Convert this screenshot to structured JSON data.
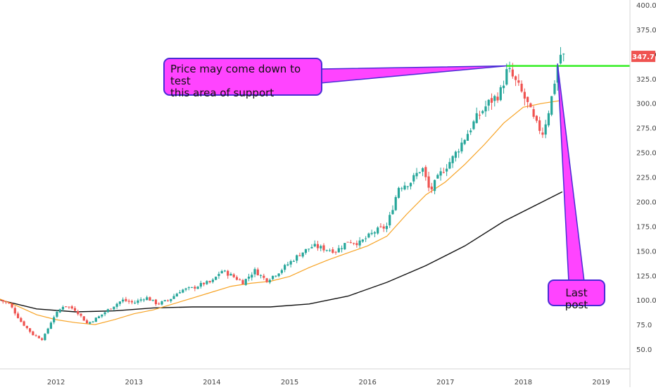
{
  "chart_data": {
    "type": "candlestick",
    "x_ticks": [
      "2012",
      "2013",
      "2014",
      "2015",
      "2016",
      "2017",
      "2018",
      "2019"
    ],
    "y_ticks": [
      "50.0",
      "75.0",
      "100.0",
      "125.0",
      "150.0",
      "175.0",
      "200.0",
      "225.0",
      "250.0",
      "275.0",
      "300.0",
      "325.0",
      "350.0",
      "375.0",
      "400.0"
    ],
    "ylim": [
      30,
      405
    ],
    "xlim": [
      2011.28,
      2019.37
    ],
    "grid": false,
    "colors": {
      "up": "#26a69a",
      "down": "#ef5350",
      "ma_fast": "#f7a325",
      "ma_slow": "#111111",
      "support_line": "#33ee22",
      "price_label_bg": "#ef5350",
      "callout_fill": "#ff44ff",
      "callout_border": "#4a2bd6"
    },
    "price_path": [
      [
        2011.28,
        100
      ],
      [
        2011.4,
        96
      ],
      [
        2011.55,
        78
      ],
      [
        2011.7,
        65
      ],
      [
        2011.83,
        60
      ],
      [
        2011.96,
        82
      ],
      [
        2012.1,
        95
      ],
      [
        2012.25,
        90
      ],
      [
        2012.4,
        76
      ],
      [
        2012.55,
        83
      ],
      [
        2012.7,
        92
      ],
      [
        2012.85,
        100
      ],
      [
        2013.0,
        97
      ],
      [
        2013.15,
        103
      ],
      [
        2013.3,
        96
      ],
      [
        2013.45,
        100
      ],
      [
        2013.6,
        110
      ],
      [
        2013.75,
        112
      ],
      [
        2013.9,
        117
      ],
      [
        2014.0,
        118
      ],
      [
        2014.12,
        130
      ],
      [
        2014.25,
        125
      ],
      [
        2014.4,
        118
      ],
      [
        2014.55,
        130
      ],
      [
        2014.7,
        120
      ],
      [
        2014.85,
        128
      ],
      [
        2015.0,
        138
      ],
      [
        2015.15,
        148
      ],
      [
        2015.3,
        155
      ],
      [
        2015.45,
        152
      ],
      [
        2015.6,
        150
      ],
      [
        2015.75,
        160
      ],
      [
        2015.9,
        158
      ],
      [
        2016.1,
        170
      ],
      [
        2016.25,
        175
      ],
      [
        2016.4,
        215
      ],
      [
        2016.55,
        220
      ],
      [
        2016.7,
        235
      ],
      [
        2016.8,
        210
      ],
      [
        2016.95,
        230
      ],
      [
        2017.1,
        245
      ],
      [
        2017.25,
        265
      ],
      [
        2017.4,
        285
      ],
      [
        2017.55,
        300
      ],
      [
        2017.7,
        310
      ],
      [
        2017.8,
        335
      ],
      [
        2017.95,
        315
      ],
      [
        2018.05,
        300
      ],
      [
        2018.15,
        280
      ],
      [
        2018.25,
        270
      ],
      [
        2018.35,
        300
      ],
      [
        2018.42,
        330
      ],
      [
        2018.47,
        350
      ],
      [
        2018.52,
        347.7
      ]
    ],
    "ma_fast": [
      [
        2011.28,
        101
      ],
      [
        2011.5,
        94
      ],
      [
        2011.75,
        85
      ],
      [
        2012.0,
        80
      ],
      [
        2012.25,
        77
      ],
      [
        2012.5,
        75
      ],
      [
        2012.75,
        80
      ],
      [
        2013.0,
        86
      ],
      [
        2013.25,
        90
      ],
      [
        2013.5,
        96
      ],
      [
        2013.75,
        102
      ],
      [
        2014.0,
        108
      ],
      [
        2014.25,
        114
      ],
      [
        2014.5,
        117
      ],
      [
        2014.75,
        119
      ],
      [
        2015.0,
        124
      ],
      [
        2015.25,
        133
      ],
      [
        2015.5,
        141
      ],
      [
        2015.75,
        148
      ],
      [
        2016.0,
        155
      ],
      [
        2016.25,
        165
      ],
      [
        2016.5,
        187
      ],
      [
        2016.75,
        207
      ],
      [
        2017.0,
        220
      ],
      [
        2017.25,
        238
      ],
      [
        2017.5,
        258
      ],
      [
        2017.75,
        280
      ],
      [
        2018.0,
        296
      ],
      [
        2018.25,
        300
      ],
      [
        2018.5,
        303
      ]
    ],
    "ma_slow": [
      [
        2011.28,
        100
      ],
      [
        2011.75,
        91
      ],
      [
        2012.25,
        88
      ],
      [
        2012.75,
        89
      ],
      [
        2013.25,
        92
      ],
      [
        2013.75,
        93
      ],
      [
        2014.25,
        93
      ],
      [
        2014.75,
        93
      ],
      [
        2015.25,
        96
      ],
      [
        2015.75,
        104
      ],
      [
        2016.25,
        118
      ],
      [
        2016.75,
        135
      ],
      [
        2017.25,
        155
      ],
      [
        2017.75,
        180
      ],
      [
        2018.25,
        200
      ],
      [
        2018.5,
        210
      ]
    ],
    "support_level": 338,
    "support_from": 2017.78,
    "last_price": 347.7,
    "last_price_label": "347.7",
    "annotations": [
      {
        "key": "support",
        "lines": [
          "Price may come down to test",
          "this area of support"
        ],
        "tip_x": 2017.78,
        "tip_y": 338
      },
      {
        "key": "last",
        "lines": [
          "Last post"
        ],
        "tip_x": 2018.44,
        "tip_y": 340
      }
    ]
  }
}
